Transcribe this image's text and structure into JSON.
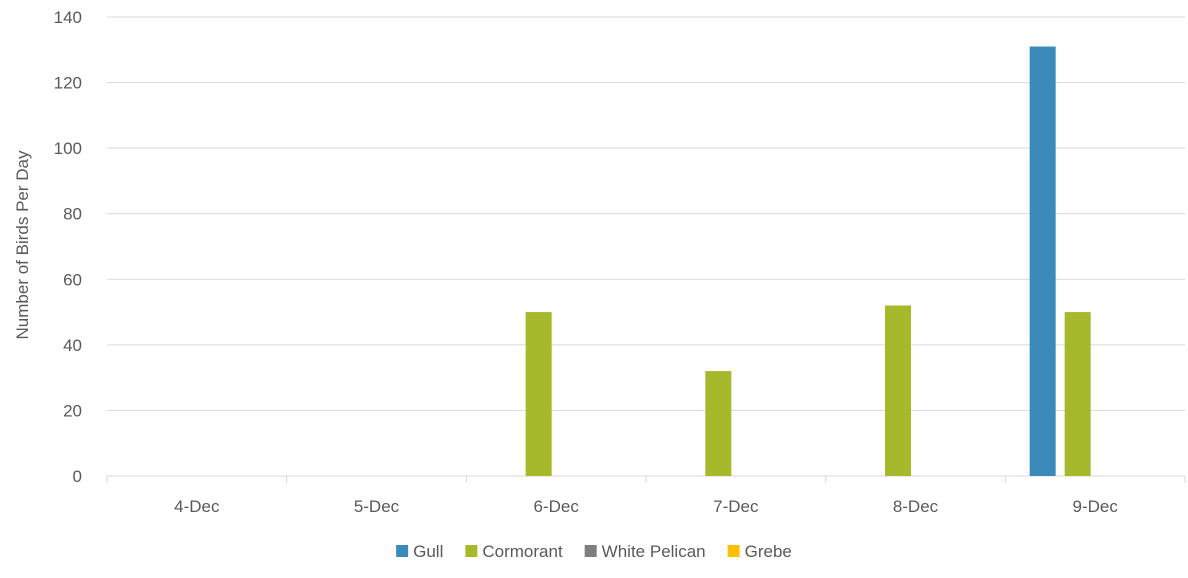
{
  "chart_data": {
    "type": "bar",
    "categories": [
      "4-Dec",
      "5-Dec",
      "6-Dec",
      "7-Dec",
      "8-Dec",
      "9-Dec"
    ],
    "series": [
      {
        "name": "Gull",
        "color": "#3b8bba",
        "values": [
          0,
          0,
          0,
          0,
          0,
          131
        ]
      },
      {
        "name": "Cormorant",
        "color": "#a5b92a",
        "values": [
          0,
          0,
          50,
          32,
          52,
          50
        ]
      },
      {
        "name": "White Pelican",
        "color": "#7f7f7f",
        "values": [
          0,
          0,
          0,
          0,
          0,
          0
        ]
      },
      {
        "name": "Grebe",
        "color": "#ffc000",
        "values": [
          0,
          0,
          0,
          0,
          0,
          0
        ]
      }
    ],
    "title": "",
    "xlabel": "",
    "ylabel": "Number of Birds Per Day",
    "ylim": [
      0,
      140
    ],
    "yticks": [
      0,
      20,
      40,
      60,
      80,
      100,
      120,
      140
    ],
    "grid": true,
    "legend": "bottom"
  }
}
